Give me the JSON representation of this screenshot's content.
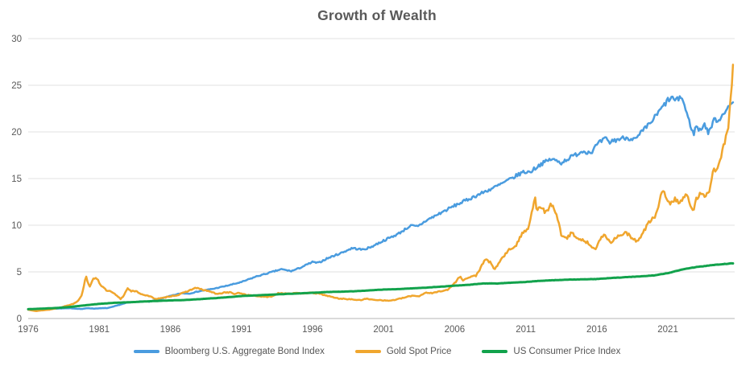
{
  "title": "Growth of Wealth",
  "colors": {
    "bond_blue": "#4A9CDF",
    "gold": "#F0A62E",
    "cpi_green": "#12A24C",
    "gridline": "#E1E1E1",
    "axis_line": "#C4C4C4",
    "label_text": "#595959"
  },
  "chart_data": {
    "type": "line",
    "title": "Growth of Wealth",
    "xlabel": "",
    "ylabel": "",
    "grid": true,
    "legend_position": "bottom",
    "x_axis": {
      "range": [
        1976,
        2025.7
      ],
      "ticks": [
        1976,
        1981,
        1986,
        1991,
        1996,
        2001,
        2006,
        2011,
        2016,
        2021
      ]
    },
    "y_axis": {
      "range": [
        0,
        30
      ],
      "ticks": [
        0,
        5,
        10,
        15,
        20,
        25,
        30
      ]
    },
    "series": [
      {
        "name": "Bloomberg U.S. Aggregate Bond Index",
        "color": "#4A9CDF",
        "points": [
          [
            1976.0,
            1.0
          ],
          [
            1977.0,
            1.06
          ],
          [
            1978.0,
            1.07
          ],
          [
            1979.0,
            1.1
          ],
          [
            1979.8,
            1.02
          ],
          [
            1980.2,
            1.12
          ],
          [
            1980.6,
            1.06
          ],
          [
            1981.0,
            1.1
          ],
          [
            1981.6,
            1.12
          ],
          [
            1982.0,
            1.28
          ],
          [
            1982.9,
            1.68
          ],
          [
            1983.5,
            1.78
          ],
          [
            1984.0,
            1.84
          ],
          [
            1984.5,
            1.8
          ],
          [
            1985.0,
            1.98
          ],
          [
            1986.0,
            2.42
          ],
          [
            1986.8,
            2.72
          ],
          [
            1987.3,
            2.66
          ],
          [
            1988.0,
            2.92
          ],
          [
            1989.0,
            3.18
          ],
          [
            1990.0,
            3.52
          ],
          [
            1991.0,
            3.9
          ],
          [
            1992.0,
            4.48
          ],
          [
            1993.0,
            4.92
          ],
          [
            1993.8,
            5.28
          ],
          [
            1994.5,
            5.08
          ],
          [
            1995.0,
            5.35
          ],
          [
            1996.0,
            6.05
          ],
          [
            1996.4,
            5.95
          ],
          [
            1997.0,
            6.42
          ],
          [
            1998.0,
            7.02
          ],
          [
            1998.8,
            7.55
          ],
          [
            1999.5,
            7.38
          ],
          [
            2000.0,
            7.58
          ],
          [
            2001.0,
            8.35
          ],
          [
            2002.0,
            9.05
          ],
          [
            2002.9,
            9.95
          ],
          [
            2003.4,
            9.85
          ],
          [
            2004.0,
            10.5
          ],
          [
            2005.0,
            11.3
          ],
          [
            2006.0,
            12.1
          ],
          [
            2007.0,
            12.8
          ],
          [
            2008.0,
            13.5
          ],
          [
            2009.0,
            14.2
          ],
          [
            2010.0,
            15.0
          ],
          [
            2010.8,
            15.7
          ],
          [
            2011.3,
            15.7
          ],
          [
            2012.0,
            16.5
          ],
          [
            2012.8,
            17.1
          ],
          [
            2013.5,
            16.7
          ],
          [
            2014.0,
            17.15
          ],
          [
            2015.0,
            17.95
          ],
          [
            2015.6,
            17.8
          ],
          [
            2016.0,
            18.6
          ],
          [
            2016.6,
            19.3
          ],
          [
            2016.9,
            18.8
          ],
          [
            2017.0,
            19.0
          ],
          [
            2018.0,
            19.4
          ],
          [
            2018.8,
            19.2
          ],
          [
            2019.0,
            19.7
          ],
          [
            2019.8,
            21.0
          ],
          [
            2020.3,
            22.0
          ],
          [
            2020.6,
            22.6
          ],
          [
            2021.0,
            23.4
          ],
          [
            2021.3,
            23.65
          ],
          [
            2021.6,
            23.3
          ],
          [
            2021.9,
            23.85
          ],
          [
            2022.1,
            23.2
          ],
          [
            2022.4,
            21.6
          ],
          [
            2022.6,
            20.7
          ],
          [
            2022.8,
            19.7
          ],
          [
            2023.0,
            20.7
          ],
          [
            2023.2,
            20.1
          ],
          [
            2023.6,
            20.9
          ],
          [
            2023.8,
            19.9
          ],
          [
            2024.0,
            20.4
          ],
          [
            2024.3,
            21.4
          ],
          [
            2024.6,
            21.2
          ],
          [
            2024.9,
            22.1
          ],
          [
            2025.2,
            22.4
          ],
          [
            2025.6,
            23.3
          ]
        ]
      },
      {
        "name": "Gold Spot Price",
        "color": "#F0A62E",
        "points": [
          [
            1976.0,
            0.95
          ],
          [
            1976.6,
            0.8
          ],
          [
            1977.0,
            0.88
          ],
          [
            1977.5,
            0.95
          ],
          [
            1978.0,
            1.1
          ],
          [
            1978.6,
            1.32
          ],
          [
            1978.9,
            1.45
          ],
          [
            1979.2,
            1.6
          ],
          [
            1979.5,
            1.9
          ],
          [
            1979.8,
            2.6
          ],
          [
            1980.05,
            4.6
          ],
          [
            1980.2,
            3.9
          ],
          [
            1980.35,
            3.4
          ],
          [
            1980.6,
            4.3
          ],
          [
            1980.8,
            4.4
          ],
          [
            1981.1,
            3.6
          ],
          [
            1981.5,
            3.0
          ],
          [
            1981.8,
            2.9
          ],
          [
            1982.1,
            2.6
          ],
          [
            1982.5,
            2.1
          ],
          [
            1982.7,
            2.4
          ],
          [
            1983.0,
            3.3
          ],
          [
            1983.2,
            2.95
          ],
          [
            1983.6,
            2.9
          ],
          [
            1984.0,
            2.6
          ],
          [
            1984.5,
            2.4
          ],
          [
            1985.0,
            2.1
          ],
          [
            1985.5,
            2.2
          ],
          [
            1986.0,
            2.4
          ],
          [
            1986.5,
            2.5
          ],
          [
            1987.0,
            2.8
          ],
          [
            1987.8,
            3.3
          ],
          [
            1988.2,
            3.1
          ],
          [
            1988.8,
            2.9
          ],
          [
            1989.3,
            2.6
          ],
          [
            1989.8,
            2.8
          ],
          [
            1990.2,
            2.8
          ],
          [
            1990.6,
            2.6
          ],
          [
            1990.8,
            2.75
          ],
          [
            1991.5,
            2.5
          ],
          [
            1992.0,
            2.42
          ],
          [
            1992.8,
            2.3
          ],
          [
            1993.2,
            2.4
          ],
          [
            1993.6,
            2.75
          ],
          [
            1994.0,
            2.7
          ],
          [
            1995.0,
            2.7
          ],
          [
            1996.0,
            2.75
          ],
          [
            1996.5,
            2.65
          ],
          [
            1997.0,
            2.45
          ],
          [
            1997.8,
            2.15
          ],
          [
            1998.5,
            2.08
          ],
          [
            1999.0,
            2.02
          ],
          [
            1999.4,
            1.95
          ],
          [
            1999.7,
            2.15
          ],
          [
            2000.0,
            2.05
          ],
          [
            2000.5,
            2.0
          ],
          [
            2001.0,
            1.95
          ],
          [
            2001.3,
            1.9
          ],
          [
            2001.8,
            2.0
          ],
          [
            2002.5,
            2.25
          ],
          [
            2003.0,
            2.45
          ],
          [
            2003.5,
            2.4
          ],
          [
            2004.0,
            2.8
          ],
          [
            2004.4,
            2.7
          ],
          [
            2005.0,
            2.95
          ],
          [
            2005.5,
            3.05
          ],
          [
            2006.0,
            3.8
          ],
          [
            2006.4,
            4.55
          ],
          [
            2006.6,
            4.1
          ],
          [
            2007.0,
            4.4
          ],
          [
            2007.5,
            4.6
          ],
          [
            2008.2,
            6.4
          ],
          [
            2008.5,
            6.0
          ],
          [
            2008.8,
            5.2
          ],
          [
            2009.2,
            6.2
          ],
          [
            2009.8,
            7.3
          ],
          [
            2010.3,
            7.8
          ],
          [
            2010.8,
            9.2
          ],
          [
            2011.2,
            9.8
          ],
          [
            2011.65,
            13.0
          ],
          [
            2011.8,
            11.5
          ],
          [
            2012.1,
            12.0
          ],
          [
            2012.4,
            11.3
          ],
          [
            2012.8,
            12.2
          ],
          [
            2013.1,
            11.5
          ],
          [
            2013.3,
            10.5
          ],
          [
            2013.5,
            8.8
          ],
          [
            2013.9,
            8.6
          ],
          [
            2014.2,
            9.2
          ],
          [
            2014.7,
            8.6
          ],
          [
            2015.0,
            8.4
          ],
          [
            2015.5,
            8.0
          ],
          [
            2015.9,
            7.4
          ],
          [
            2016.2,
            8.3
          ],
          [
            2016.55,
            9.2
          ],
          [
            2016.9,
            8.1
          ],
          [
            2017.3,
            8.6
          ],
          [
            2017.7,
            9.0
          ],
          [
            2018.1,
            9.2
          ],
          [
            2018.5,
            8.5
          ],
          [
            2018.8,
            8.3
          ],
          [
            2019.2,
            9.0
          ],
          [
            2019.6,
            10.2
          ],
          [
            2020.0,
            10.8
          ],
          [
            2020.3,
            11.5
          ],
          [
            2020.6,
            13.9
          ],
          [
            2020.9,
            13.0
          ],
          [
            2021.2,
            12.2
          ],
          [
            2021.5,
            12.9
          ],
          [
            2021.8,
            12.4
          ],
          [
            2022.1,
            13.0
          ],
          [
            2022.3,
            13.3
          ],
          [
            2022.6,
            12.0
          ],
          [
            2022.8,
            11.5
          ],
          [
            2023.0,
            12.8
          ],
          [
            2023.3,
            13.6
          ],
          [
            2023.6,
            13.2
          ],
          [
            2023.8,
            13.5
          ],
          [
            2024.0,
            14.1
          ],
          [
            2024.2,
            15.8
          ],
          [
            2024.5,
            16.3
          ],
          [
            2024.7,
            17.3
          ],
          [
            2024.9,
            18.2
          ],
          [
            2025.05,
            19.2
          ],
          [
            2025.15,
            19.8
          ],
          [
            2025.25,
            20.8
          ],
          [
            2025.4,
            23.0
          ],
          [
            2025.6,
            27.4
          ]
        ]
      },
      {
        "name": "US Consumer Price Index",
        "color": "#12A24C",
        "points": [
          [
            1976,
            1.0
          ],
          [
            1977,
            1.06
          ],
          [
            1978,
            1.13
          ],
          [
            1979,
            1.25
          ],
          [
            1980,
            1.42
          ],
          [
            1981,
            1.57
          ],
          [
            1982,
            1.68
          ],
          [
            1983,
            1.74
          ],
          [
            1984,
            1.81
          ],
          [
            1985,
            1.88
          ],
          [
            1986,
            1.94
          ],
          [
            1987,
            1.98
          ],
          [
            1988,
            2.07
          ],
          [
            1989,
            2.17
          ],
          [
            1990,
            2.28
          ],
          [
            1991,
            2.41
          ],
          [
            1992,
            2.48
          ],
          [
            1993,
            2.55
          ],
          [
            1994,
            2.62
          ],
          [
            1995,
            2.69
          ],
          [
            1996,
            2.76
          ],
          [
            1997,
            2.84
          ],
          [
            1998,
            2.88
          ],
          [
            1999,
            2.93
          ],
          [
            2000,
            3.01
          ],
          [
            2001,
            3.11
          ],
          [
            2002,
            3.15
          ],
          [
            2003,
            3.23
          ],
          [
            2004,
            3.31
          ],
          [
            2005,
            3.41
          ],
          [
            2006,
            3.52
          ],
          [
            2007,
            3.61
          ],
          [
            2008,
            3.76
          ],
          [
            2009,
            3.75
          ],
          [
            2010,
            3.85
          ],
          [
            2011,
            3.92
          ],
          [
            2012,
            4.04
          ],
          [
            2013,
            4.11
          ],
          [
            2014,
            4.17
          ],
          [
            2015,
            4.2
          ],
          [
            2016,
            4.23
          ],
          [
            2017,
            4.34
          ],
          [
            2018,
            4.43
          ],
          [
            2019,
            4.51
          ],
          [
            2020,
            4.62
          ],
          [
            2021,
            4.87
          ],
          [
            2022,
            5.25
          ],
          [
            2023,
            5.52
          ],
          [
            2024,
            5.7
          ],
          [
            2025,
            5.85
          ],
          [
            2025.6,
            5.92
          ]
        ]
      }
    ]
  }
}
